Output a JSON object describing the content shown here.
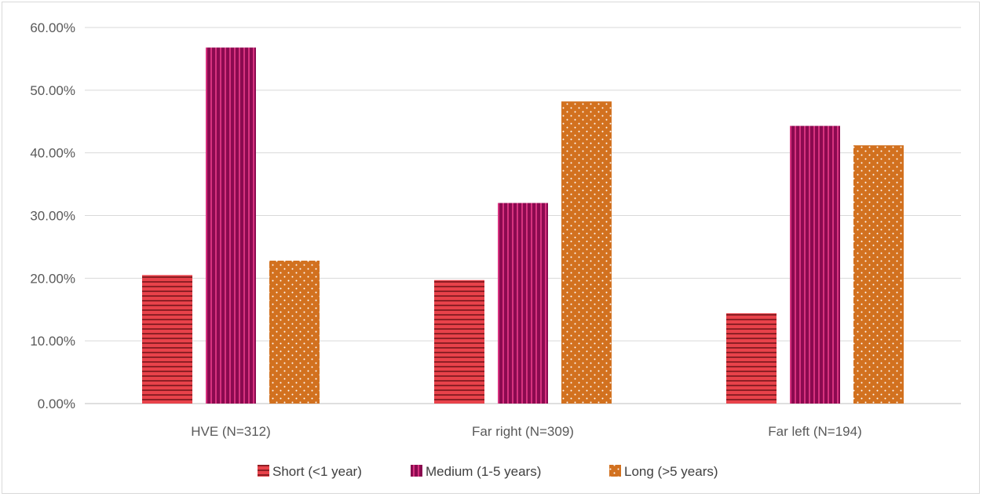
{
  "chart_data": {
    "type": "bar",
    "title": "",
    "xlabel": "",
    "ylabel": "",
    "categories": [
      "HVE (N=312)",
      "Far right (N=309)",
      "Far left (N=194)"
    ],
    "series": [
      {
        "name": "Short (<1 year)",
        "values": [
          20.5,
          19.7,
          14.4
        ],
        "color": "#e8424a",
        "pattern": "horizontal-stripes"
      },
      {
        "name": "Medium (1-5 years)",
        "values": [
          56.8,
          32.0,
          44.3
        ],
        "color": "#8b0a50",
        "pattern": "vertical-stripes"
      },
      {
        "name": "Long (>5 years)",
        "values": [
          22.8,
          48.2,
          41.2
        ],
        "color": "#d2711f",
        "pattern": "dots"
      }
    ],
    "ylim": [
      0,
      60
    ],
    "yticks": [
      "0.00%",
      "10.00%",
      "20.00%",
      "30.00%",
      "40.00%",
      "50.00%",
      "60.00%"
    ],
    "grid": true,
    "legend_position": "bottom"
  }
}
